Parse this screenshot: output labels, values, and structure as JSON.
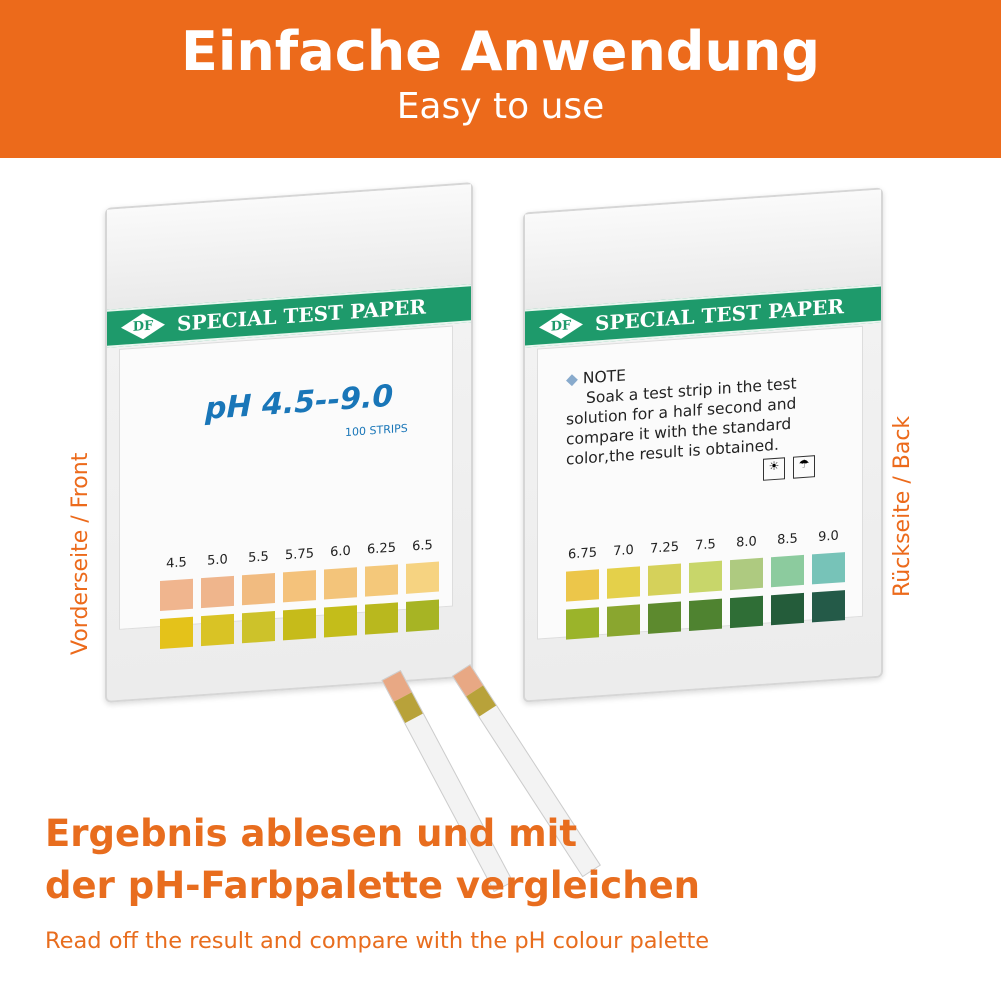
{
  "header": {
    "title": "Einfache Anwendung",
    "subtitle": "Easy to use"
  },
  "front": {
    "side_label": "Vorderseite / Front",
    "brand": "SPECIAL TEST PAPER",
    "logo": "DF",
    "range": "pH 4.5--9.0",
    "count": "100 STRIPS",
    "scale": [
      {
        "ph": "4.5",
        "top": "#f0b58e",
        "bottom": "#e4c21a"
      },
      {
        "ph": "5.0",
        "top": "#efb58c",
        "bottom": "#d9c325"
      },
      {
        "ph": "5.5",
        "top": "#f1bb80",
        "bottom": "#cdc22a"
      },
      {
        "ph": "5.75",
        "top": "#f4c27b",
        "bottom": "#c6bb1a"
      },
      {
        "ph": "6.0",
        "top": "#f3c47a",
        "bottom": "#c4bd1a"
      },
      {
        "ph": "6.25",
        "top": "#f4c87a",
        "bottom": "#b9b81e"
      },
      {
        "ph": "6.5",
        "top": "#f6d381",
        "bottom": "#a7b424"
      }
    ]
  },
  "back": {
    "side_label": "Rückseite / Back",
    "brand": "SPECIAL TEST PAPER",
    "logo": "DF",
    "note_title": "NOTE",
    "note_text": "Soak a test strip in the test solution for a half second and compare it with the standard color,the result is obtained.",
    "scale": [
      {
        "ph": "6.75",
        "top": "#ecc64a",
        "bottom": "#9bb42a"
      },
      {
        "ph": "7.0",
        "top": "#e4d04a",
        "bottom": "#8aa62f"
      },
      {
        "ph": "7.25",
        "top": "#d5d15a",
        "bottom": "#5d8a2e"
      },
      {
        "ph": "7.5",
        "top": "#c8d66a",
        "bottom": "#4f8330"
      },
      {
        "ph": "8.0",
        "top": "#aeca80",
        "bottom": "#2f6e36"
      },
      {
        "ph": "8.5",
        "top": "#8ccb9e",
        "bottom": "#245c3a"
      },
      {
        "ph": "9.0",
        "top": "#77c3b8",
        "bottom": "#245a48"
      }
    ]
  },
  "footer": {
    "headline_line1": "Ergebnis ablesen und mit",
    "headline_line2": "der pH-Farbpalette vergleichen",
    "caption": "Read off the result and compare with the pH colour palette"
  }
}
